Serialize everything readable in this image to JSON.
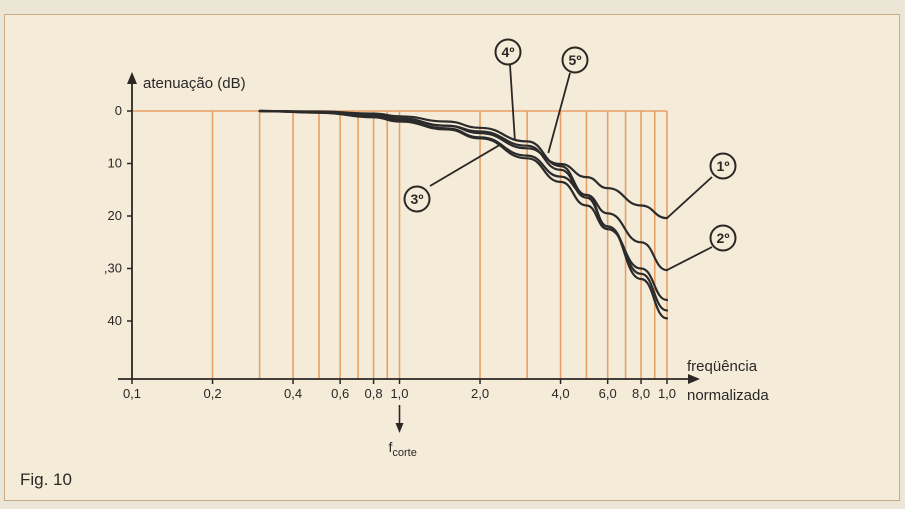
{
  "chart_data": {
    "type": "line",
    "ylabel": "atenuação (dB)",
    "xlabel_line1": "freqüência",
    "xlabel_line2": "normalizada",
    "cutoff_label": "f",
    "cutoff_sub": "corte",
    "x_scale": "log",
    "y_inverted": true,
    "xlim": [
      0.1,
      10
    ],
    "ylim": [
      0,
      45
    ],
    "x_ticks": [
      {
        "v": 0.1,
        "t": "0,1"
      },
      {
        "v": 0.2,
        "t": "0,2"
      },
      {
        "v": 0.4,
        "t": "0,4"
      },
      {
        "v": 0.6,
        "t": "0,6"
      },
      {
        "v": 0.8,
        "t": "0,8"
      },
      {
        "v": 1.0,
        "t": "1,0"
      },
      {
        "v": 2.0,
        "t": "2,0"
      },
      {
        "v": 4.0,
        "t": "4,0"
      },
      {
        "v": 6.0,
        "t": "6,0"
      },
      {
        "v": 8.0,
        "t": "8,0"
      },
      {
        "v": 10.0,
        "t": "1,0"
      }
    ],
    "y_ticks": [
      {
        "v": 0,
        "t": "0"
      },
      {
        "v": 10,
        "t": "10"
      },
      {
        "v": 20,
        "t": "20"
      },
      {
        "v": 30,
        "t": ",30"
      },
      {
        "v": 40,
        "t": "40"
      }
    ],
    "grid_verticals": [
      0.2,
      0.3,
      0.4,
      0.5,
      0.6,
      0.7,
      0.8,
      0.9,
      1.0,
      2.0,
      3.0,
      4.0,
      5.0,
      6.0,
      7.0,
      8.0,
      9.0,
      10.0
    ],
    "grid_top": 0,
    "grid_from": 0.2,
    "grid_to": 10.0,
    "grid_color": "#e8a064",
    "curve_color": "#2b2b2b",
    "series": [
      {
        "name": "1º",
        "x": [
          0.3,
          0.5,
          0.8,
          1.0,
          1.5,
          2.0,
          3.0,
          4.0,
          5.0,
          6.0,
          8.0,
          10.0
        ],
        "y": [
          0,
          0.2,
          0.8,
          1.4,
          2.8,
          4.2,
          7.1,
          10.1,
          12.6,
          14.7,
          18.0,
          20.4
        ]
      },
      {
        "name": "2º",
        "x": [
          0.3,
          0.5,
          0.8,
          1.0,
          1.5,
          2.0,
          3.0,
          4.0,
          5.0,
          6.0,
          8.0,
          10.0
        ],
        "y": [
          0,
          0.3,
          1.0,
          1.8,
          3.3,
          5.0,
          8.5,
          12.5,
          16.0,
          19.5,
          25.0,
          30.3
        ]
      },
      {
        "name": "3º",
        "x": [
          0.3,
          0.5,
          0.8,
          1.0,
          1.5,
          2.0,
          3.0,
          4.0,
          5.0,
          6.0,
          8.0,
          10.0
        ],
        "y": [
          0,
          0.3,
          1.2,
          2.0,
          3.5,
          5.2,
          9.0,
          13.5,
          18.0,
          22.5,
          30.0,
          36.0
        ]
      },
      {
        "name": "4º",
        "x": [
          0.3,
          0.5,
          0.8,
          1.0,
          1.5,
          2.0,
          3.0,
          4.0,
          5.0,
          6.0,
          8.0,
          10.0
        ],
        "y": [
          0,
          0.2,
          0.8,
          1.5,
          2.8,
          3.9,
          6.6,
          11.2,
          16.5,
          22.0,
          31.0,
          38.0
        ]
      },
      {
        "name": "5º",
        "x": [
          0.3,
          0.5,
          0.8,
          1.0,
          1.5,
          2.0,
          3.0,
          4.0,
          5.0,
          6.0,
          8.0,
          10.0
        ],
        "y": [
          0,
          0.1,
          0.5,
          1.0,
          2.0,
          3.2,
          5.8,
          10.5,
          16.0,
          22.0,
          32.0,
          39.5
        ]
      }
    ],
    "annotations": [
      {
        "label": "1º",
        "series": 0
      },
      {
        "label": "2º",
        "series": 1
      },
      {
        "label": "3º",
        "series": 2
      },
      {
        "label": "4º",
        "series": 3
      },
      {
        "label": "5º",
        "series": 4
      }
    ]
  },
  "figure_label": "Fig. 10"
}
